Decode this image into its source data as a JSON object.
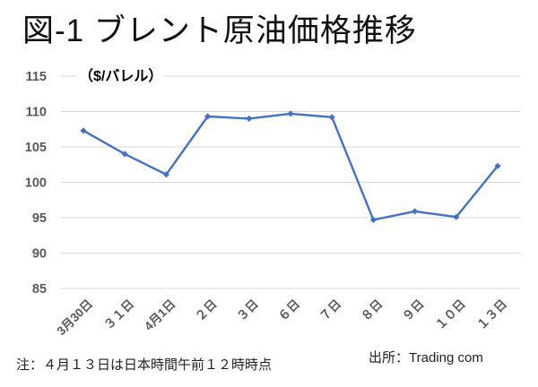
{
  "title": "図-1 ブレント原油価格推移",
  "footer": {
    "note": "注：４月１３日は日本時間午前１２時時点",
    "source": "出所：Trading com"
  },
  "chart_data": {
    "type": "line",
    "title": "図-1 ブレント原油価格推移",
    "unit_label": "（$/バレル）",
    "categories": [
      "3月30日",
      "３１日",
      "4月1日",
      "２日",
      "３日",
      "６日",
      "７日",
      "８日",
      "９日",
      "１０日",
      "１３日"
    ],
    "values": [
      107.3,
      104.0,
      101.1,
      109.3,
      109.0,
      109.7,
      109.2,
      94.7,
      95.9,
      95.1,
      102.3
    ],
    "xlabel": "",
    "ylabel": "（$/バレル）",
    "ylim": [
      85,
      115
    ],
    "yticks": [
      115,
      110,
      105,
      100,
      95,
      90,
      85
    ],
    "grid": true,
    "legend_position": "none",
    "marker": "diamond",
    "colors": {
      "line": "#4472C4",
      "marker": "#4472C4",
      "gridline": "#D9D9D9",
      "tick_label": "#595959",
      "background": "#FFFFFF"
    }
  }
}
